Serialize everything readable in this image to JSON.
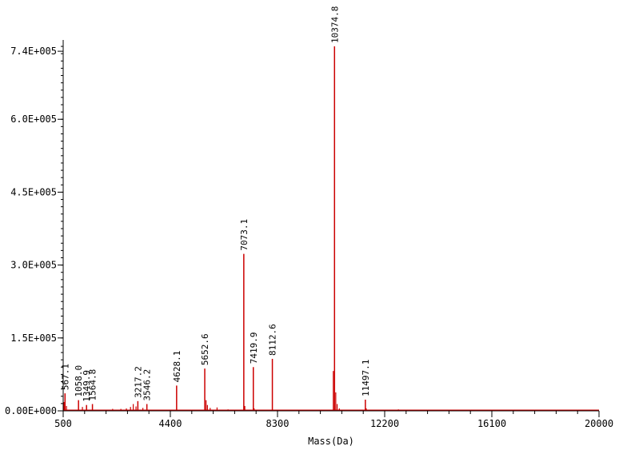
{
  "chart_data": {
    "type": "line",
    "title": "",
    "xlabel": "Mass(Da)",
    "ylabel": "",
    "xlim": [
      500,
      20000
    ],
    "ylim": [
      0,
      755000
    ],
    "x_ticks": [
      {
        "value": 500,
        "label": "500"
      },
      {
        "value": 4400,
        "label": "4400"
      },
      {
        "value": 8300,
        "label": "8300"
      },
      {
        "value": 12200,
        "label": "12200"
      },
      {
        "value": 16100,
        "label": "16100"
      },
      {
        "value": 20000,
        "label": "20000"
      }
    ],
    "y_ticks": [
      {
        "value": 0,
        "label": "0.00E+000"
      },
      {
        "value": 150000,
        "label": "1.5E+005"
      },
      {
        "value": 300000,
        "label": "3.0E+005"
      },
      {
        "value": 450000,
        "label": "4.5E+005"
      },
      {
        "value": 600000,
        "label": "6.0E+005"
      },
      {
        "value": 740000,
        "label": "7.4E+005"
      }
    ],
    "grid": false,
    "series_color": "#cc0000",
    "peaks": [
      {
        "x": 567.1,
        "y": 36000,
        "label": "567.1"
      },
      {
        "x": 1058.0,
        "y": 22000,
        "label": "1058.0"
      },
      {
        "x": 1349.9,
        "y": 12000,
        "label": "1349.9"
      },
      {
        "x": 1564.8,
        "y": 14000,
        "label": "1564.8"
      },
      {
        "x": 3217.2,
        "y": 20000,
        "label": "3217.2"
      },
      {
        "x": 3546.2,
        "y": 14000,
        "label": "3546.2"
      },
      {
        "x": 4628.1,
        "y": 52000,
        "label": "4628.1"
      },
      {
        "x": 5652.6,
        "y": 87000,
        "label": "5652.6"
      },
      {
        "x": 7073.1,
        "y": 323000,
        "label": "7073.1"
      },
      {
        "x": 7419.9,
        "y": 90000,
        "label": "7419.9"
      },
      {
        "x": 8112.6,
        "y": 107000,
        "label": "8112.6"
      },
      {
        "x": 10374.8,
        "y": 750000,
        "label": "10374.8"
      },
      {
        "x": 11497.1,
        "y": 23000,
        "label": "11497.1"
      }
    ],
    "minor_peaks": [
      {
        "x": 530,
        "y": 18000
      },
      {
        "x": 620,
        "y": 10000
      },
      {
        "x": 1200,
        "y": 8000
      },
      {
        "x": 2300,
        "y": 4000
      },
      {
        "x": 2600,
        "y": 4000
      },
      {
        "x": 2800,
        "y": 5000
      },
      {
        "x": 2950,
        "y": 8000
      },
      {
        "x": 3050,
        "y": 14000
      },
      {
        "x": 3150,
        "y": 9000
      },
      {
        "x": 3400,
        "y": 6000
      },
      {
        "x": 5700,
        "y": 22000
      },
      {
        "x": 5750,
        "y": 12000
      },
      {
        "x": 5850,
        "y": 6000
      },
      {
        "x": 6100,
        "y": 7000
      },
      {
        "x": 6500,
        "y": 3000
      },
      {
        "x": 7110,
        "y": 10000
      },
      {
        "x": 7450,
        "y": 5000
      },
      {
        "x": 10330,
        "y": 82000
      },
      {
        "x": 10420,
        "y": 38000
      },
      {
        "x": 10470,
        "y": 14000
      },
      {
        "x": 10550,
        "y": 5000
      },
      {
        "x": 11530,
        "y": 5000
      },
      {
        "x": 12700,
        "y": 3000
      },
      {
        "x": 13200,
        "y": 2000
      }
    ]
  }
}
